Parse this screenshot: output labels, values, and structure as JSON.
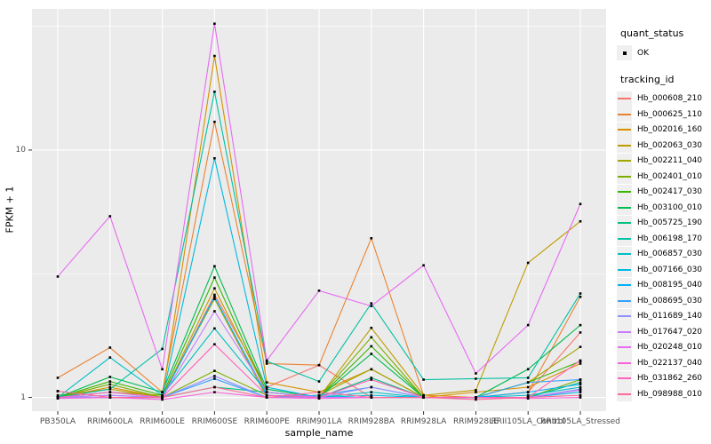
{
  "chart_data": {
    "type": "line",
    "xlabel": "sample_name",
    "ylabel": "FPKM + 1",
    "y_scale": "log10",
    "ylim": [
      0.88,
      37.2
    ],
    "y_ticks": [
      1,
      10
    ],
    "y_tick_labels": [
      "1",
      "10"
    ],
    "y_minor_gridlines": [
      3.162,
      31.62
    ],
    "grid": "on",
    "legend_position": "right",
    "point_marker": "black-square",
    "categories": [
      "PB350LA",
      "RRIM600LA",
      "RRIM600LE",
      "RRIM600SE",
      "RRIM600PE",
      "RRIM901LA",
      "RRIM928BA",
      "RRIM928LA",
      "RRIM928LE",
      "RRII105LA_Control",
      "RRII105LA_Stressed"
    ],
    "series": [
      {
        "name": "Hb_000608_210",
        "color": "#F8766D",
        "values": [
          1.06,
          1.0,
          1.0,
          2.6,
          1.1,
          1.35,
          1.0,
          1.0,
          1.0,
          1.05,
          1.83
        ]
      },
      {
        "name": "Hb_000625_110",
        "color": "#EA8331",
        "values": [
          1.2,
          1.59,
          1.05,
          13.0,
          1.37,
          1.35,
          4.4,
          1.02,
          1.0,
          1.05,
          2.55
        ]
      },
      {
        "name": "Hb_002016_160",
        "color": "#D89000",
        "values": [
          1.0,
          1.1,
          1.0,
          24.0,
          1.15,
          1.05,
          1.3,
          1.0,
          1.05,
          1.1,
          1.37
        ]
      },
      {
        "name": "Hb_002063_030",
        "color": "#C09B00",
        "values": [
          1.02,
          1.08,
          1.0,
          2.76,
          1.05,
          1.0,
          1.91,
          1.02,
          1.07,
          3.5,
          5.15
        ]
      },
      {
        "name": "Hb_002211_040",
        "color": "#A3A500",
        "values": [
          1.0,
          1.05,
          1.02,
          2.5,
          1.0,
          1.02,
          1.3,
          1.0,
          1.0,
          1.15,
          1.6
        ]
      },
      {
        "name": "Hb_002401_010",
        "color": "#7CAE00",
        "values": [
          1.0,
          1.13,
          1.0,
          1.28,
          1.02,
          1.0,
          1.75,
          1.0,
          1.0,
          1.0,
          1.18
        ]
      },
      {
        "name": "Hb_002417_030",
        "color": "#39B600",
        "values": [
          1.0,
          1.16,
          1.02,
          3.05,
          1.05,
          1.0,
          1.61,
          1.0,
          1.0,
          1.15,
          1.4
        ]
      },
      {
        "name": "Hb_003100_010",
        "color": "#00BB4E",
        "values": [
          1.0,
          1.21,
          1.05,
          3.39,
          1.08,
          1.0,
          1.5,
          1.0,
          1.0,
          1.3,
          1.96
        ]
      },
      {
        "name": "Hb_005725_190",
        "color": "#00BF7D",
        "values": [
          1.0,
          1.0,
          1.0,
          1.1,
          1.05,
          1.0,
          1.2,
          1.0,
          1.0,
          1.0,
          1.15
        ]
      },
      {
        "name": "Hb_006198_170",
        "color": "#00C1A3",
        "values": [
          1.0,
          1.08,
          1.57,
          17.2,
          1.4,
          1.16,
          2.4,
          1.18,
          1.19,
          1.2,
          2.63
        ]
      },
      {
        "name": "Hb_006857_030",
        "color": "#00BFC4",
        "values": [
          1.0,
          1.45,
          1.02,
          1.9,
          1.05,
          1.0,
          1.05,
          1.0,
          1.0,
          1.02,
          1.1
        ]
      },
      {
        "name": "Hb_007166_030",
        "color": "#00BAE0",
        "values": [
          1.0,
          1.02,
          1.0,
          9.26,
          1.1,
          1.0,
          1.02,
          1.0,
          1.0,
          1.0,
          1.05
        ]
      },
      {
        "name": "Hb_008195_040",
        "color": "#00B0F6",
        "values": [
          1.0,
          1.0,
          1.0,
          2.55,
          1.02,
          1.0,
          1.0,
          1.0,
          1.0,
          1.05,
          1.13
        ]
      },
      {
        "name": "Hb_008695_030",
        "color": "#35A2FF",
        "values": [
          1.0,
          1.05,
          1.0,
          1.19,
          1.0,
          1.02,
          1.1,
          1.0,
          1.0,
          1.15,
          1.18
        ]
      },
      {
        "name": "Hb_011689_140",
        "color": "#9590FF",
        "values": [
          1.0,
          1.0,
          1.0,
          1.22,
          1.0,
          1.0,
          1.1,
          1.0,
          1.0,
          1.0,
          1.08
        ]
      },
      {
        "name": "Hb_017647_020",
        "color": "#C77CFF",
        "values": [
          1.0,
          1.02,
          1.0,
          2.23,
          1.05,
          1.0,
          1.0,
          1.0,
          1.0,
          1.0,
          1.07
        ]
      },
      {
        "name": "Hb_020248_010",
        "color": "#E76BF3",
        "values": [
          3.08,
          5.4,
          1.3,
          32.4,
          1.41,
          2.7,
          2.34,
          3.42,
          1.25,
          1.96,
          6.05
        ]
      },
      {
        "name": "Hb_022137_040",
        "color": "#FA62DB",
        "values": [
          0.99,
          1.0,
          0.98,
          1.05,
          1.0,
          0.99,
          1.0,
          1.0,
          1.0,
          0.99,
          1.0
        ]
      },
      {
        "name": "Hb_031862_260",
        "color": "#FF62BC",
        "values": [
          1.0,
          1.05,
          1.0,
          1.64,
          1.02,
          1.0,
          1.18,
          1.0,
          1.0,
          1.0,
          1.41
        ]
      },
      {
        "name": "Hb_098988_010",
        "color": "#FF6A98",
        "values": [
          1.06,
          1.0,
          1.0,
          1.1,
          1.0,
          1.05,
          1.0,
          1.0,
          0.98,
          1.0,
          1.02
        ]
      }
    ],
    "legend": {
      "quant_status": {
        "title": "quant_status",
        "items": [
          {
            "label": "OK",
            "marker": "black-point"
          }
        ]
      },
      "tracking_id": {
        "title": "tracking_id"
      }
    }
  },
  "colors": {
    "panel_background": "#EBEBEB",
    "gridline": "#FFFFFF",
    "tick_mark": "#333333",
    "tick_label": "#4D4D4D",
    "legend_key_background": "#EFEFEF",
    "point": "#000000"
  }
}
